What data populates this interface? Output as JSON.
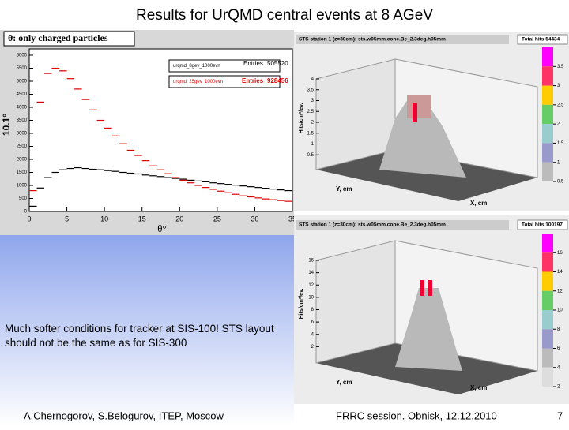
{
  "title": "Results for UrQMD central events at 8 AGeV",
  "chart_data": {
    "type": "histogram",
    "title": "θ: only charged particles",
    "x_label": "θ°",
    "y_label": "10.1°",
    "entries_label": "Entries",
    "bins": [
      0,
      1,
      2,
      3,
      4,
      5,
      6,
      7,
      8,
      9,
      10,
      11,
      12,
      13,
      14,
      15,
      16,
      17,
      18,
      19,
      20,
      21,
      22,
      23,
      24,
      25,
      26,
      27,
      28,
      29,
      30,
      31,
      32,
      33,
      34,
      35
    ],
    "series": [
      {
        "name": "urqmd_8gev_1000evn",
        "color": "#000000",
        "entries": 505520,
        "values": [
          200,
          900,
          1300,
          1500,
          1600,
          1650,
          1680,
          1650,
          1620,
          1600,
          1570,
          1540,
          1500,
          1470,
          1440,
          1400,
          1370,
          1340,
          1300,
          1270,
          1240,
          1200,
          1170,
          1140,
          1100,
          1070,
          1040,
          1010,
          980,
          950,
          920,
          890,
          860,
          830,
          800
        ]
      },
      {
        "name": "urqmd_25gev_1000evn",
        "color": "#dd0000",
        "entries": 928456,
        "values": [
          800,
          4200,
          5300,
          5500,
          5400,
          5100,
          4700,
          4300,
          3900,
          3500,
          3200,
          2900,
          2600,
          2350,
          2150,
          1950,
          1750,
          1600,
          1450,
          1300,
          1200,
          1100,
          1000,
          920,
          850,
          780,
          720,
          660,
          600,
          560,
          520,
          480,
          450,
          420,
          390
        ]
      }
    ],
    "xlim": [
      0,
      35
    ],
    "ylim": [
      0,
      6000
    ],
    "xticks": [
      0,
      5,
      10,
      15,
      20,
      25,
      30,
      35
    ],
    "yticks": [
      0,
      500,
      1000,
      1500,
      2000,
      2500,
      3000,
      3500,
      4000,
      4500,
      5000,
      5500,
      6000
    ]
  },
  "plots": [
    {
      "title": "STS station 1 (z=30cm): sts.w05mm.cone.Be_2.3deg.h05mm",
      "total": "Total hits 54434",
      "z_label": "Hits/cm²/ev.",
      "x_label": "X, cm",
      "y_label": "Y, cm",
      "zticks": [
        4,
        3.5,
        3,
        2.5,
        2,
        1.5,
        1,
        0.5
      ],
      "scale": [
        3.5,
        3,
        2.5,
        2,
        1.5,
        1,
        0.5
      ]
    },
    {
      "title": "STS station 1 (z=30cm): sts.w05mm.cone.Be_2.3deg.h05mm",
      "total": "Total hits 100197",
      "z_label": "Hits/cm²/ev.",
      "x_label": "X, cm",
      "y_label": "Y, cm",
      "zticks": [
        16,
        14,
        12,
        10,
        8,
        6,
        4,
        2
      ],
      "scale": [
        16,
        14,
        12,
        10,
        8,
        6,
        4,
        2
      ]
    }
  ],
  "note": "Much softer conditions for tracker at SIS-100! STS layout should not be the same as for SIS-300",
  "footer": {
    "authors": "A.Chernogorov, S.Belogurov, ITEP, Moscow",
    "event": "FRRC session. Obnisk, 12.12.2010",
    "page": 7
  }
}
